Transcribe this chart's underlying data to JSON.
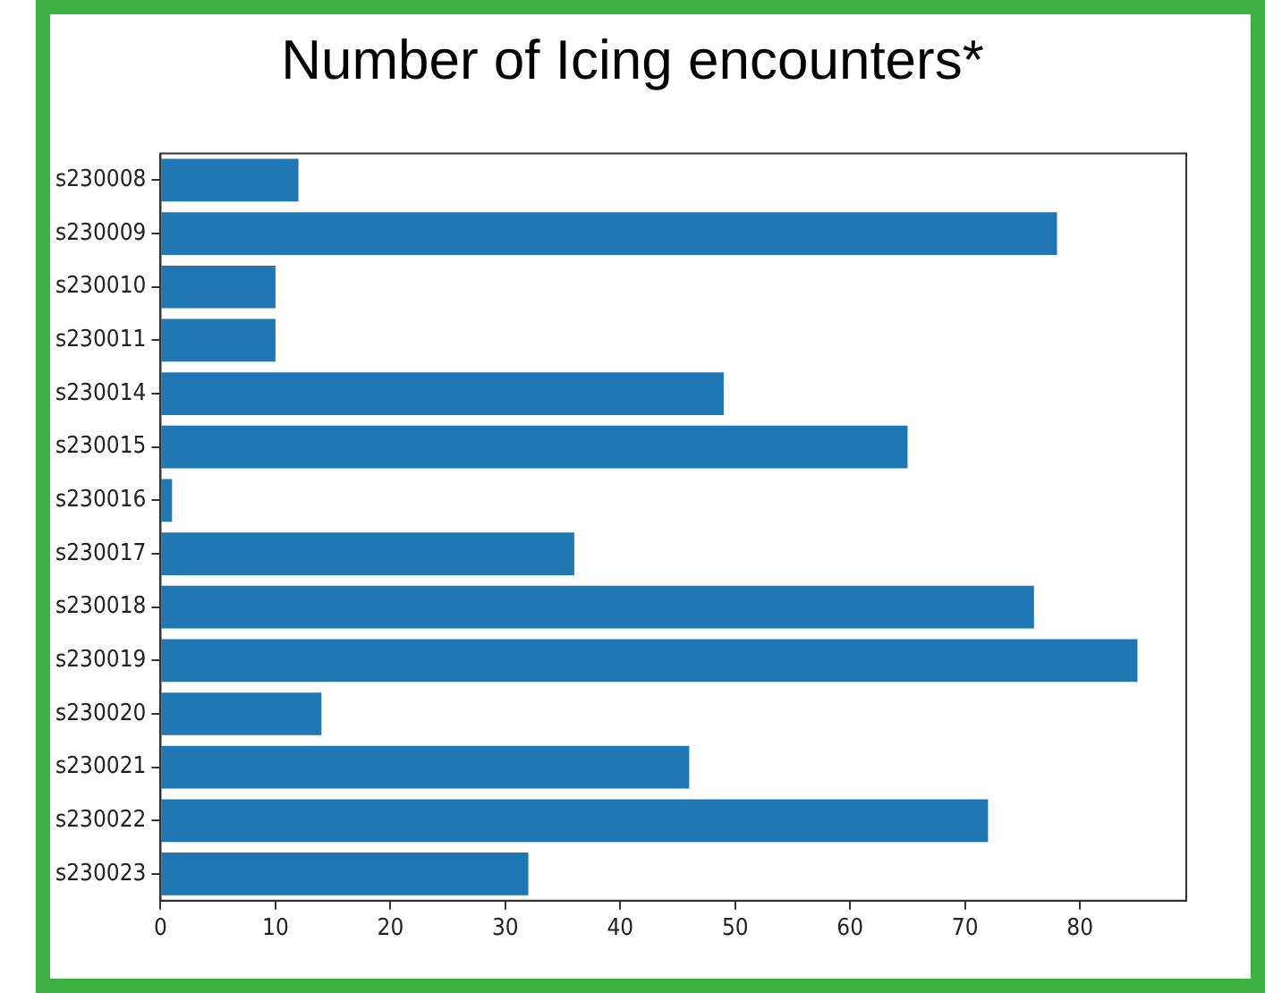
{
  "chart_data": {
    "type": "bar",
    "orientation": "horizontal",
    "title": "Number of Icing encounters*",
    "categories": [
      "s230008",
      "s230009",
      "s230010",
      "s230011",
      "s230014",
      "s230015",
      "s230016",
      "s230017",
      "s230018",
      "s230019",
      "s230020",
      "s230021",
      "s230022",
      "s230023"
    ],
    "values": [
      12,
      78,
      10,
      10,
      49,
      65,
      1,
      36,
      76,
      85,
      14,
      46,
      72,
      32
    ],
    "color": "#1f77b4",
    "xlim": [
      0,
      89.25
    ],
    "xticks": [
      0,
      10,
      20,
      30,
      40,
      50,
      60,
      70,
      80
    ],
    "grid": false,
    "legend": false
  }
}
